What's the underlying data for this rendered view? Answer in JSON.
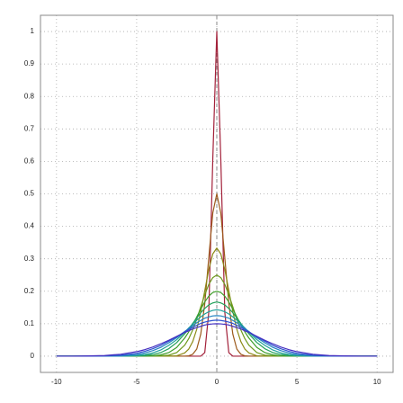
{
  "chart_data": {
    "type": "line",
    "x": [
      -10,
      -9,
      -8,
      -7,
      -6,
      -5,
      -4.5,
      -4,
      -3.5,
      -3,
      -2.5,
      -2,
      -1.75,
      -1.5,
      -1.25,
      -1,
      -0.75,
      -0.5,
      -0.25,
      0,
      0.25,
      0.5,
      0.75,
      1,
      1.25,
      1.5,
      1.75,
      2,
      2.5,
      3,
      3.5,
      4,
      4.5,
      5,
      6,
      7,
      8,
      9,
      10
    ],
    "series": [
      {
        "color": "#a3213a",
        "values": [
          0,
          0,
          0,
          0,
          0,
          0,
          0,
          0,
          0,
          0,
          0,
          0,
          0,
          0,
          0,
          0,
          0.011,
          0.135,
          0.607,
          1,
          0.607,
          0.135,
          0.011,
          0,
          0,
          0,
          0,
          0,
          0,
          0,
          0,
          0,
          0,
          0,
          0,
          0,
          0,
          0,
          0
        ]
      },
      {
        "color": "#9c5a1c",
        "values": [
          0,
          0,
          0,
          0,
          0,
          0,
          0,
          0,
          0,
          0,
          0,
          0,
          0.001,
          0.006,
          0.022,
          0.068,
          0.162,
          0.303,
          0.441,
          0.5,
          0.441,
          0.303,
          0.162,
          0.068,
          0.022,
          0.006,
          0.001,
          0,
          0,
          0,
          0,
          0,
          0,
          0,
          0,
          0,
          0,
          0,
          0
        ]
      },
      {
        "color": "#8c8a16",
        "values": [
          0,
          0,
          0,
          0,
          0,
          0,
          0,
          0,
          0,
          0,
          0.001,
          0.01,
          0.022,
          0.045,
          0.083,
          0.137,
          0.202,
          0.267,
          0.315,
          0.333,
          0.315,
          0.267,
          0.202,
          0.137,
          0.083,
          0.045,
          0.022,
          0.01,
          0.001,
          0,
          0,
          0,
          0,
          0,
          0,
          0,
          0,
          0,
          0
        ]
      },
      {
        "color": "#6e9a1e",
        "values": [
          0,
          0,
          0,
          0,
          0,
          0,
          0,
          0,
          0.001,
          0.003,
          0.011,
          0.034,
          0.054,
          0.081,
          0.114,
          0.152,
          0.189,
          0.221,
          0.242,
          0.25,
          0.242,
          0.221,
          0.189,
          0.152,
          0.114,
          0.081,
          0.054,
          0.034,
          0.011,
          0.003,
          0.001,
          0,
          0,
          0,
          0,
          0,
          0,
          0,
          0
        ]
      },
      {
        "color": "#3f9e2a",
        "values": [
          0,
          0,
          0,
          0,
          0,
          0,
          0,
          0.001,
          0.004,
          0.011,
          0.027,
          0.056,
          0.075,
          0.097,
          0.121,
          0.145,
          0.167,
          0.185,
          0.196,
          0.2,
          0.196,
          0.185,
          0.167,
          0.145,
          0.121,
          0.097,
          0.075,
          0.056,
          0.027,
          0.011,
          0.004,
          0.001,
          0,
          0,
          0,
          0,
          0,
          0,
          0
        ]
      },
      {
        "color": "#22a05a",
        "values": [
          0,
          0,
          0,
          0,
          0,
          0.001,
          0.002,
          0.005,
          0.011,
          0.023,
          0.042,
          0.069,
          0.084,
          0.101,
          0.118,
          0.134,
          0.147,
          0.158,
          0.164,
          0.167,
          0.164,
          0.158,
          0.147,
          0.134,
          0.118,
          0.101,
          0.084,
          0.069,
          0.042,
          0.023,
          0.011,
          0.005,
          0.002,
          0.001,
          0,
          0,
          0,
          0,
          0
        ]
      },
      {
        "color": "#1fa09a",
        "values": [
          0,
          0,
          0,
          0,
          0,
          0.002,
          0.005,
          0.01,
          0.019,
          0.033,
          0.051,
          0.074,
          0.087,
          0.099,
          0.111,
          0.121,
          0.13,
          0.137,
          0.141,
          0.143,
          0.141,
          0.137,
          0.13,
          0.121,
          0.111,
          0.099,
          0.087,
          0.074,
          0.051,
          0.033,
          0.019,
          0.01,
          0.005,
          0.002,
          0,
          0,
          0,
          0,
          0
        ]
      },
      {
        "color": "#2282c0",
        "values": [
          0,
          0,
          0,
          0,
          0.001,
          0.005,
          0.01,
          0.017,
          0.027,
          0.041,
          0.057,
          0.076,
          0.085,
          0.094,
          0.103,
          0.11,
          0.117,
          0.121,
          0.124,
          0.125,
          0.124,
          0.121,
          0.117,
          0.11,
          0.103,
          0.094,
          0.085,
          0.076,
          0.057,
          0.041,
          0.027,
          0.017,
          0.01,
          0.005,
          0.001,
          0,
          0,
          0,
          0
        ]
      },
      {
        "color": "#2f52cf",
        "values": [
          0,
          0,
          0,
          0.001,
          0.003,
          0.009,
          0.015,
          0.023,
          0.033,
          0.046,
          0.06,
          0.075,
          0.082,
          0.089,
          0.095,
          0.101,
          0.105,
          0.108,
          0.11,
          0.111,
          0.11,
          0.108,
          0.105,
          0.101,
          0.095,
          0.089,
          0.082,
          0.075,
          0.06,
          0.046,
          0.033,
          0.023,
          0.015,
          0.009,
          0.003,
          0.001,
          0,
          0,
          0
        ]
      },
      {
        "color": "#4530c0",
        "values": [
          0,
          0,
          0.001,
          0.002,
          0.006,
          0.014,
          0.02,
          0.028,
          0.038,
          0.049,
          0.061,
          0.073,
          0.078,
          0.084,
          0.088,
          0.092,
          0.096,
          0.098,
          0.0995,
          0.1,
          0.0995,
          0.098,
          0.096,
          0.092,
          0.088,
          0.084,
          0.078,
          0.073,
          0.061,
          0.049,
          0.038,
          0.028,
          0.02,
          0.014,
          0.006,
          0.002,
          0.001,
          0,
          0
        ]
      }
    ],
    "xlim": [
      -11,
      11
    ],
    "ylim": [
      -0.05,
      1.05
    ],
    "xticks": [
      -10,
      -5,
      0,
      5,
      10
    ],
    "yticks": [
      0,
      0.1,
      0.2,
      0.3,
      0.4,
      0.5,
      0.6,
      0.7,
      0.8,
      0.9,
      1
    ],
    "grid": true,
    "vline": 0
  }
}
